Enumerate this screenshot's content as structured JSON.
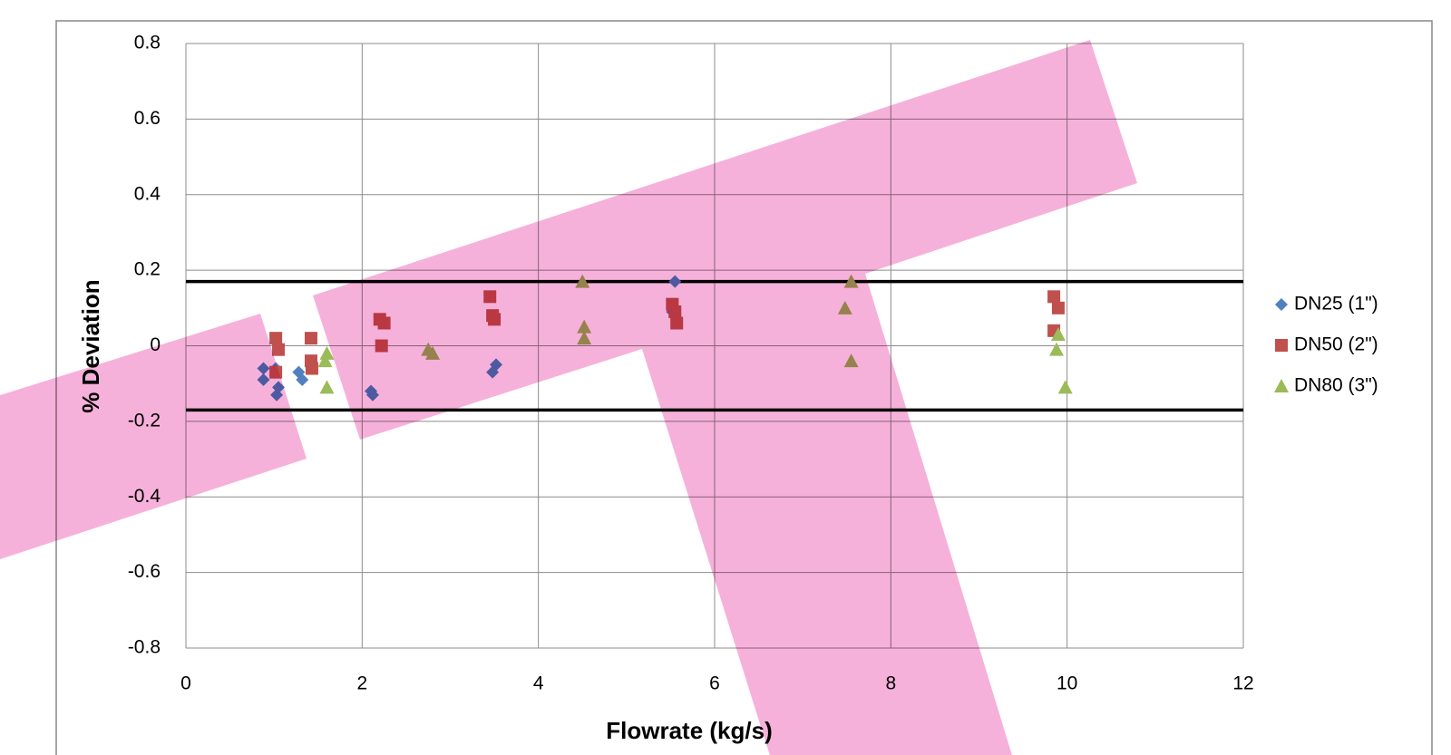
{
  "chart_data": {
    "type": "scatter",
    "x_label": "Flowrate (kg/s)",
    "y_label": "% Deviation",
    "xlim": [
      0,
      12
    ],
    "xticks": [
      0,
      2,
      4,
      6,
      8,
      10,
      12
    ],
    "ylim": [
      -0.8,
      0.8
    ],
    "yticks": [
      -0.8,
      -0.6,
      -0.4,
      -0.2,
      0,
      0.2,
      0.4,
      0.6,
      0.8
    ],
    "grid": true,
    "legend": "right",
    "hlines": [
      0.17,
      -0.17
    ],
    "hline_color": "#000000",
    "series": [
      {
        "name": "DN25 (1\")",
        "color": "#4f81bd",
        "marker": "diamond",
        "x": [
          0.88,
          0.88,
          1.02,
          1.03,
          1.05,
          1.28,
          1.32,
          2.1,
          2.12,
          3.48,
          3.52,
          5.55,
          5.52
        ],
        "values": [
          -0.06,
          -0.09,
          -0.06,
          -0.13,
          -0.11,
          -0.07,
          -0.09,
          -0.12,
          -0.13,
          -0.07,
          -0.05,
          0.17,
          0.09
        ]
      },
      {
        "name": "DN50 (2\")",
        "color": "#c0504d",
        "marker": "square",
        "x": [
          1.02,
          1.05,
          1.02,
          1.42,
          1.42,
          1.43,
          2.2,
          2.25,
          2.22,
          3.45,
          3.48,
          3.5,
          5.52,
          5.55,
          5.57,
          9.85,
          9.9,
          9.85
        ],
        "values": [
          0.02,
          -0.01,
          -0.07,
          0.02,
          -0.04,
          -0.06,
          0.07,
          0.06,
          0,
          0.13,
          0.08,
          0.07,
          0.11,
          0.09,
          0.06,
          0.13,
          0.1,
          0.04
        ]
      },
      {
        "name": "DN80 (3\")",
        "color": "#9bbb59",
        "marker": "triangle",
        "x": [
          1.6,
          1.58,
          1.6,
          2.75,
          2.8,
          4.5,
          4.52,
          4.52,
          7.48,
          7.55,
          7.55,
          9.9,
          9.88,
          9.98
        ],
        "values": [
          -0.02,
          -0.04,
          -0.11,
          -0.01,
          -0.02,
          0.17,
          0.05,
          0.02,
          0.1,
          0.17,
          -0.04,
          0.03,
          -0.01,
          -0.11
        ]
      }
    ]
  }
}
